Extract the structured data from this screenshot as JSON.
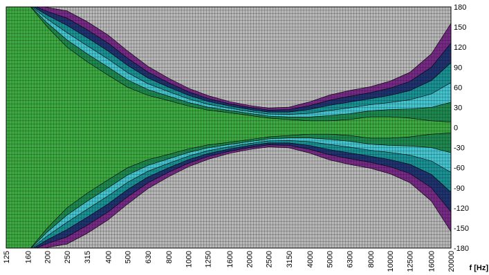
{
  "chart_data": {
    "type": "heatmap",
    "title": "",
    "xlabel": "f [Hz]",
    "ylabel": "",
    "x_scale": "log",
    "xlim": [
      125,
      20000
    ],
    "ylim": [
      -180,
      180
    ],
    "grid": true,
    "x_ticks": [
      "125",
      "160",
      "200",
      "250",
      "315",
      "400",
      "500",
      "630",
      "800",
      "1000",
      "1250",
      "1600",
      "2000",
      "2500",
      "3150",
      "4000",
      "5000",
      "6300",
      "8000",
      "10000",
      "12500",
      "16000",
      "20000"
    ],
    "y_ticks": [
      "180",
      "150",
      "120",
      "90",
      "60",
      "30",
      "0",
      "-30",
      "-60",
      "-90",
      "-120",
      "-150",
      "-180"
    ],
    "level_colors": [
      "#3daa42",
      "#1f8a50",
      "#45c5cf",
      "#1a9396",
      "#1f3470",
      "#772b86",
      "#b9b9b9"
    ],
    "level_index_note": "",
    "directivity_profile": {
      "frequency_hz": [
        125,
        160,
        200,
        250,
        315,
        400,
        500,
        630,
        800,
        1000,
        1250,
        1600,
        2000,
        2500,
        3150,
        4000,
        5000,
        6300,
        8000,
        10000,
        12500,
        16000,
        20000
      ],
      "green_edge_deg": [
        185,
        185,
        150,
        120,
        98,
        78,
        60,
        48,
        40,
        32,
        26,
        22,
        18,
        14,
        12,
        10,
        10,
        12,
        16,
        16,
        14,
        10,
        8
      ],
      "gray_edge_deg": [
        185,
        185,
        185,
        185,
        170,
        150,
        125,
        100,
        80,
        64,
        52,
        42,
        36,
        32,
        34,
        44,
        56,
        64,
        70,
        80,
        96,
        130,
        185
      ]
    }
  }
}
